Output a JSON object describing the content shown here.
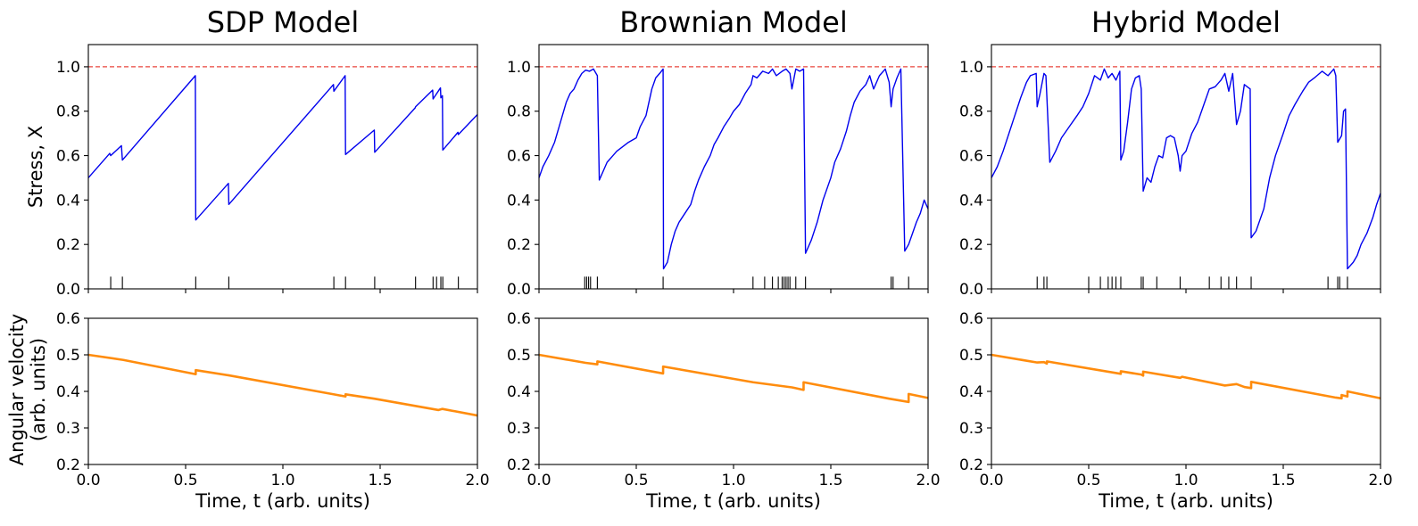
{
  "figure": {
    "shared_ylabel_top": "Stress, X",
    "shared_ylabel_bottom_line1": "Angular velocity",
    "shared_ylabel_bottom_line2": "(arb. units)",
    "shared_xlabel": "Time, t (arb. units)"
  },
  "colors": {
    "stress_line": "#0000ee",
    "threshold_line": "#e8453c",
    "velocity_line": "#ff8c0d",
    "event_ticks": "#000000"
  },
  "chart_data": [
    {
      "type": "line",
      "panel": "SDP Model",
      "title": "SDP Model",
      "top": {
        "ylabel": "Stress, X",
        "xlim": [
          0,
          2.0
        ],
        "ylim": [
          0,
          1.1
        ],
        "yticks": [
          "0.0",
          "0.2",
          "0.4",
          "0.6",
          "0.8",
          "1.0"
        ],
        "threshold": 1.0,
        "series": [
          {
            "x": [
              0,
              0.11,
              0.115,
              0.17,
              0.175,
              0.55,
              0.552,
              0.72,
              0.722,
              1.26,
              1.262,
              1.32,
              1.322,
              1.47,
              1.472,
              1.68,
              1.682,
              1.77,
              1.772,
              1.81,
              1.812,
              1.82,
              1.822,
              1.9,
              1.902,
              2.0
            ],
            "y": [
              0.5,
              0.61,
              0.6,
              0.645,
              0.58,
              0.96,
              0.31,
              0.475,
              0.38,
              0.92,
              0.89,
              0.96,
              0.605,
              0.715,
              0.615,
              0.815,
              0.82,
              0.895,
              0.855,
              0.905,
              0.86,
              0.87,
              0.625,
              0.705,
              0.695,
              0.785
            ]
          }
        ],
        "events": [
          0.115,
          0.175,
          0.552,
          0.722,
          1.262,
          1.322,
          1.472,
          1.682,
          1.772,
          1.79,
          1.812,
          1.822,
          1.902
        ]
      },
      "bottom": {
        "xlabel": "Time, t (arb. units)",
        "ylabel": "Angular velocity (arb. units)",
        "xlim": [
          0,
          2.0
        ],
        "ylim": [
          0.2,
          0.6
        ],
        "xticks": [
          "0.0",
          "0.5",
          "1.0",
          "1.5",
          "2.0"
        ],
        "yticks": [
          "0.2",
          "0.3",
          "0.4",
          "0.5",
          "0.6"
        ],
        "series": [
          {
            "x": [
              0,
              0.18,
              0.552,
              0.552,
              0.72,
              1.26,
              1.322,
              1.322,
              1.47,
              1.8,
              1.82,
              2.0
            ],
            "y": [
              0.5,
              0.486,
              0.447,
              0.458,
              0.444,
              0.392,
              0.386,
              0.392,
              0.38,
              0.349,
              0.352,
              0.334
            ]
          }
        ]
      }
    },
    {
      "type": "line",
      "panel": "Brownian Model",
      "title": "Brownian Model",
      "top": {
        "ylabel": "",
        "xlim": [
          0,
          2.0
        ],
        "ylim": [
          0,
          1.1
        ],
        "yticks": [
          "0.0",
          "0.2",
          "0.4",
          "0.6",
          "0.8",
          "1.0"
        ],
        "threshold": 1.0,
        "series": [
          {
            "x": [
              0,
              0.02,
              0.05,
              0.08,
              0.1,
              0.12,
              0.14,
              0.16,
              0.18,
              0.2,
              0.22,
              0.24,
              0.26,
              0.28,
              0.3,
              0.31,
              0.33,
              0.35,
              0.38,
              0.4,
              0.43,
              0.46,
              0.5,
              0.52,
              0.55,
              0.58,
              0.6,
              0.62,
              0.638,
              0.64,
              0.66,
              0.68,
              0.7,
              0.72,
              0.75,
              0.78,
              0.8,
              0.82,
              0.85,
              0.88,
              0.9,
              0.92,
              0.95,
              0.98,
              1.0,
              1.03,
              1.06,
              1.09,
              1.1,
              1.12,
              1.15,
              1.18,
              1.2,
              1.22,
              1.25,
              1.27,
              1.29,
              1.3,
              1.32,
              1.34,
              1.36,
              1.37,
              1.4,
              1.43,
              1.46,
              1.5,
              1.52,
              1.55,
              1.58,
              1.6,
              1.62,
              1.65,
              1.68,
              1.7,
              1.72,
              1.75,
              1.78,
              1.8,
              1.81,
              1.82,
              1.84,
              1.86,
              1.88,
              1.9,
              1.92,
              1.94,
              1.96,
              1.98,
              2.0
            ],
            "y": [
              0.5,
              0.55,
              0.6,
              0.66,
              0.72,
              0.78,
              0.84,
              0.88,
              0.9,
              0.94,
              0.97,
              0.985,
              0.98,
              0.99,
              0.96,
              0.49,
              0.53,
              0.57,
              0.6,
              0.62,
              0.64,
              0.66,
              0.68,
              0.73,
              0.78,
              0.9,
              0.95,
              0.97,
              0.99,
              0.09,
              0.12,
              0.2,
              0.26,
              0.3,
              0.34,
              0.38,
              0.44,
              0.49,
              0.55,
              0.6,
              0.65,
              0.68,
              0.73,
              0.77,
              0.8,
              0.83,
              0.88,
              0.92,
              0.96,
              0.95,
              0.98,
              0.97,
              0.99,
              0.96,
              0.98,
              0.99,
              0.97,
              0.9,
              0.99,
              0.98,
              0.99,
              0.16,
              0.22,
              0.3,
              0.4,
              0.5,
              0.57,
              0.63,
              0.71,
              0.78,
              0.84,
              0.89,
              0.92,
              0.96,
              0.9,
              0.96,
              0.99,
              0.93,
              0.82,
              0.9,
              0.95,
              0.99,
              0.17,
              0.2,
              0.25,
              0.3,
              0.34,
              0.4,
              0.36
            ]
          }
        ],
        "events": [
          0.235,
          0.245,
          0.255,
          0.265,
          0.3,
          0.638,
          1.1,
          1.16,
          1.2,
          1.23,
          1.25,
          1.26,
          1.27,
          1.28,
          1.29,
          1.32,
          1.37,
          1.81,
          1.82,
          1.9
        ]
      },
      "bottom": {
        "xlabel": "Time, t (arb. units)",
        "ylabel": "",
        "xlim": [
          0,
          2.0
        ],
        "ylim": [
          0.2,
          0.6
        ],
        "xticks": [
          "0.0",
          "0.5",
          "1.0",
          "1.5",
          "2.0"
        ],
        "yticks": [
          "0.2",
          "0.3",
          "0.4",
          "0.5",
          "0.6"
        ],
        "series": [
          {
            "x": [
              0,
              0.24,
              0.3,
              0.3,
              0.638,
              0.638,
              1.1,
              1.3,
              1.36,
              1.36,
              1.8,
              1.9,
              1.9,
              2.0
            ],
            "y": [
              0.5,
              0.478,
              0.474,
              0.482,
              0.449,
              0.468,
              0.425,
              0.411,
              0.404,
              0.425,
              0.38,
              0.371,
              0.393,
              0.382
            ]
          }
        ]
      }
    },
    {
      "type": "line",
      "panel": "Hybrid Model",
      "title": "Hybrid Model",
      "top": {
        "ylabel": "",
        "xlim": [
          0,
          2.0
        ],
        "ylim": [
          0,
          1.1
        ],
        "yticks": [
          "0.0",
          "0.2",
          "0.4",
          "0.6",
          "0.8",
          "1.0"
        ],
        "threshold": 1.0,
        "series": [
          {
            "x": [
              0,
              0.03,
              0.06,
              0.09,
              0.12,
              0.15,
              0.18,
              0.2,
              0.23,
              0.235,
              0.25,
              0.27,
              0.28,
              0.3,
              0.33,
              0.36,
              0.4,
              0.44,
              0.47,
              0.5,
              0.53,
              0.56,
              0.58,
              0.6,
              0.62,
              0.64,
              0.66,
              0.665,
              0.68,
              0.7,
              0.72,
              0.74,
              0.76,
              0.77,
              0.78,
              0.8,
              0.82,
              0.84,
              0.86,
              0.88,
              0.9,
              0.92,
              0.94,
              0.96,
              0.97,
              0.98,
              1.0,
              1.03,
              1.06,
              1.08,
              1.1,
              1.12,
              1.15,
              1.18,
              1.2,
              1.22,
              1.24,
              1.26,
              1.28,
              1.3,
              1.33,
              1.335,
              1.36,
              1.4,
              1.43,
              1.46,
              1.5,
              1.53,
              1.56,
              1.6,
              1.63,
              1.66,
              1.7,
              1.73,
              1.76,
              1.77,
              1.78,
              1.8,
              1.81,
              1.82,
              1.83,
              1.84,
              1.86,
              1.88,
              1.9,
              1.93,
              1.96,
              1.98,
              2.0
            ],
            "y": [
              0.5,
              0.55,
              0.62,
              0.7,
              0.78,
              0.86,
              0.93,
              0.96,
              0.97,
              0.82,
              0.88,
              0.97,
              0.96,
              0.57,
              0.62,
              0.68,
              0.73,
              0.78,
              0.82,
              0.88,
              0.96,
              0.94,
              0.99,
              0.95,
              0.97,
              0.94,
              0.98,
              0.58,
              0.62,
              0.75,
              0.9,
              0.95,
              0.96,
              0.9,
              0.44,
              0.5,
              0.48,
              0.55,
              0.6,
              0.59,
              0.68,
              0.69,
              0.68,
              0.6,
              0.53,
              0.6,
              0.62,
              0.7,
              0.75,
              0.8,
              0.85,
              0.9,
              0.91,
              0.94,
              0.97,
              0.89,
              0.97,
              0.74,
              0.8,
              0.92,
              0.9,
              0.23,
              0.26,
              0.36,
              0.5,
              0.6,
              0.7,
              0.78,
              0.83,
              0.89,
              0.93,
              0.95,
              0.98,
              0.96,
              0.99,
              0.96,
              0.66,
              0.69,
              0.8,
              0.81,
              0.09,
              0.1,
              0.12,
              0.15,
              0.2,
              0.25,
              0.32,
              0.38,
              0.43
            ]
          }
        ],
        "events": [
          0.235,
          0.27,
          0.285,
          0.5,
          0.56,
          0.6,
          0.62,
          0.64,
          0.665,
          0.77,
          0.78,
          0.85,
          0.97,
          1.12,
          1.18,
          1.22,
          1.26,
          1.335,
          1.73,
          1.78,
          1.79,
          1.83
        ]
      },
      "bottom": {
        "xlabel": "Time, t (arb. units)",
        "ylabel": "",
        "xlim": [
          0,
          2.0
        ],
        "ylim": [
          0.2,
          0.6
        ],
        "xticks": [
          "0.0",
          "0.5",
          "1.0",
          "1.5",
          "2.0"
        ],
        "yticks": [
          "0.2",
          "0.3",
          "0.4",
          "0.5",
          "0.6"
        ],
        "series": [
          {
            "x": [
              0,
              0.235,
              0.27,
              0.285,
              0.285,
              0.665,
              0.665,
              0.77,
              0.78,
              0.78,
              0.97,
              0.98,
              1.2,
              1.26,
              1.3,
              1.335,
              1.335,
              1.77,
              1.8,
              1.8,
              1.83,
              1.83,
              2.0
            ],
            "y": [
              0.5,
              0.479,
              0.48,
              0.476,
              0.482,
              0.448,
              0.455,
              0.446,
              0.443,
              0.454,
              0.437,
              0.44,
              0.416,
              0.42,
              0.412,
              0.409,
              0.426,
              0.383,
              0.381,
              0.39,
              0.386,
              0.4,
              0.381
            ]
          }
        ]
      }
    }
  ]
}
